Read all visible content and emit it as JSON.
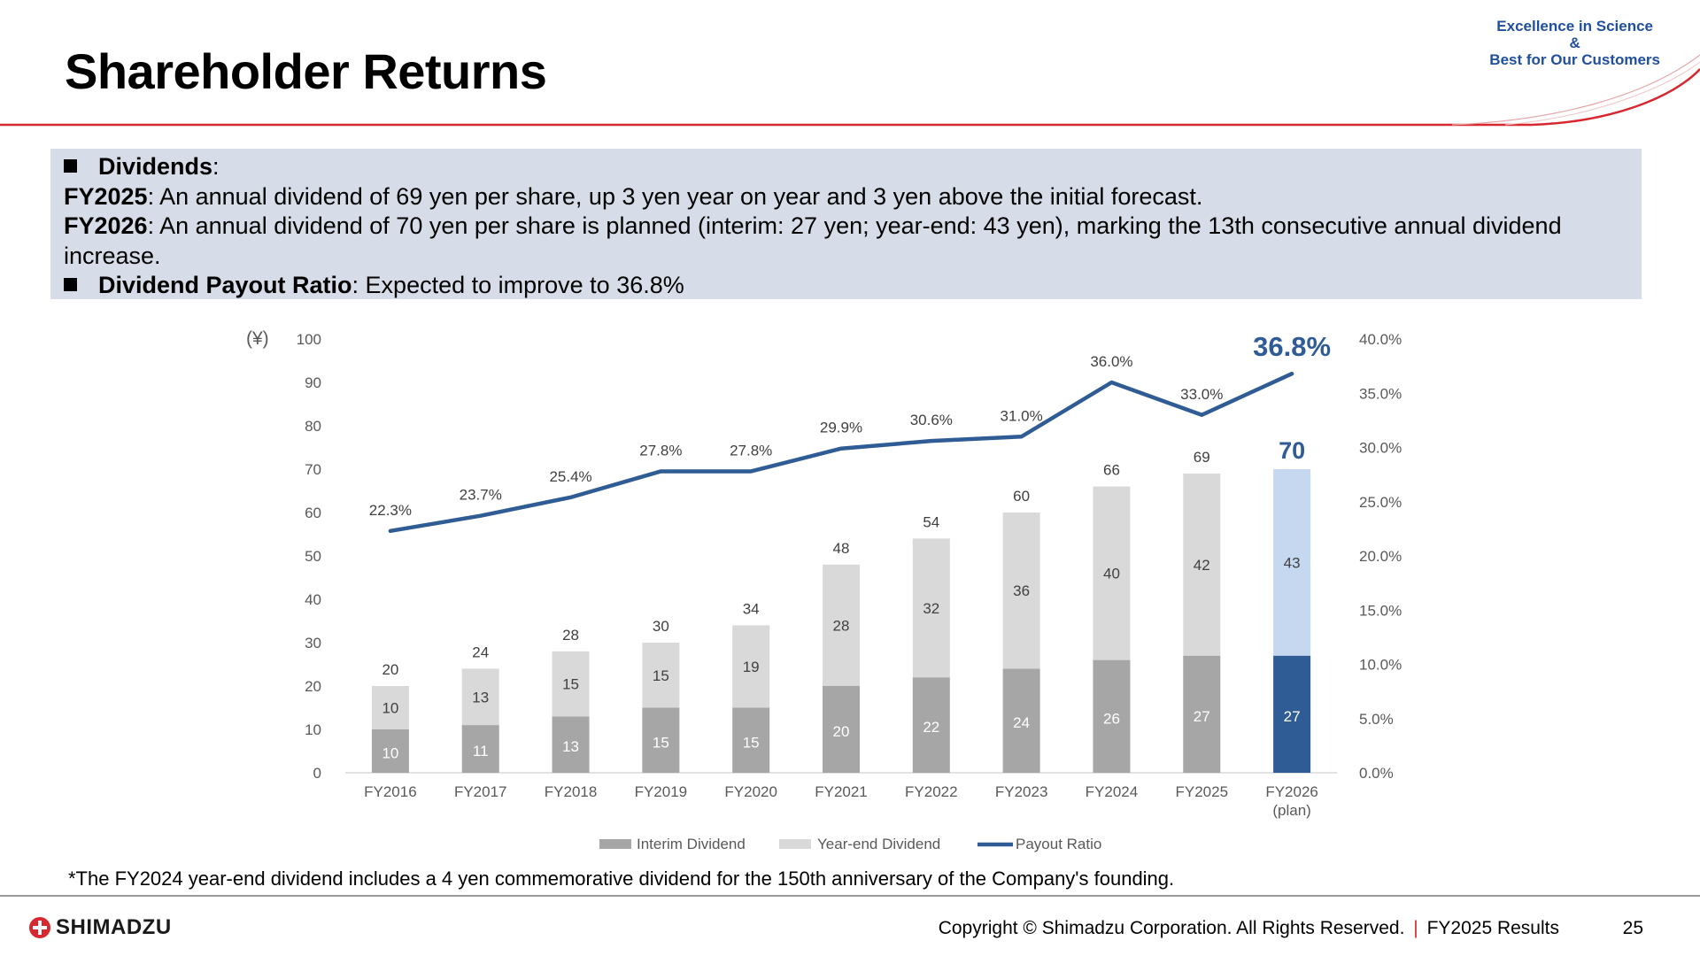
{
  "header": {
    "title": "Shareholder Returns",
    "tagline_line1": "Excellence in Science",
    "tagline_line2": "&",
    "tagline_line3": "Best for Our Customers"
  },
  "summary": {
    "dividends_label": "Dividends",
    "fy2025_label": "FY2025",
    "fy2025_text": ": An annual dividend of 69 yen per share, up 3 yen year on year and 3 yen above the initial forecast.",
    "fy2026_label": "FY2026",
    "fy2026_text": ": An annual dividend of 70 yen per share is planned (interim: 27 yen; year-end: 43 yen), marking the 13th consecutive annual dividend increase.",
    "payout_label": "Dividend Payout Ratio",
    "payout_text": ": Expected to improve to 36.8%"
  },
  "chart_data": {
    "type": "bar",
    "stacked": true,
    "categories": [
      "FY2016",
      "FY2017",
      "FY2018",
      "FY2019",
      "FY2020",
      "FY2021",
      "FY2022",
      "FY2023",
      "FY2024",
      "FY2025",
      "FY2026"
    ],
    "category_sublabels": [
      "",
      "",
      "",
      "",
      "",
      "",
      "",
      "",
      "",
      "",
      "(plan)"
    ],
    "series": [
      {
        "name": "Interim Dividend",
        "values": [
          10,
          11,
          13,
          15,
          15,
          20,
          22,
          24,
          26,
          27,
          27
        ],
        "color": "#a6a6a6",
        "plan_color": "#2f5c94"
      },
      {
        "name": "Year-end Dividend",
        "values": [
          10,
          13,
          15,
          15,
          19,
          28,
          32,
          36,
          40,
          42,
          43
        ],
        "color": "#d9d9d9",
        "plan_color": "#c5d8ef"
      }
    ],
    "totals": [
      20,
      24,
      28,
      30,
      34,
      48,
      54,
      60,
      66,
      69,
      70
    ],
    "line_series": {
      "name": "Payout Ratio",
      "axis": "right",
      "values": [
        22.3,
        23.7,
        25.4,
        27.8,
        27.8,
        29.9,
        30.6,
        31.0,
        36.0,
        33.0,
        36.8
      ],
      "labels": [
        "22.3%",
        "23.7%",
        "25.4%",
        "27.8%",
        "27.8%",
        "29.9%",
        "30.6%",
        "31.0%",
        "36.0%",
        "33.0%",
        "36.8%"
      ],
      "color": "#2f5c94"
    },
    "y_left": {
      "unit": "(¥)",
      "ylim": [
        0,
        100
      ],
      "ticks": [
        "0",
        "10",
        "20",
        "30",
        "40",
        "50",
        "60",
        "70",
        "80",
        "90",
        "100"
      ]
    },
    "y_right": {
      "ylim": [
        0,
        40
      ],
      "ticks": [
        "0.0%",
        "5.0%",
        "10.0%",
        "15.0%",
        "20.0%",
        "25.0%",
        "30.0%",
        "35.0%",
        "40.0%"
      ]
    },
    "legend_position": "bottom",
    "grid": false
  },
  "footnote": "*The FY2024 year-end dividend includes a 4 yen commemorative dividend for the 150th anniversary of the Company's founding.",
  "footer": {
    "logo_text": "SHIMADZU",
    "copyright": "Copyright © Shimadzu Corporation. All Rights Reserved.",
    "separator": "|",
    "results": "FY2025 Results",
    "page_number": "25"
  },
  "colors": {
    "accent_red": "#d7282f",
    "brand_blue": "#1f4f9e",
    "summary_bg": "#d6dde8"
  }
}
